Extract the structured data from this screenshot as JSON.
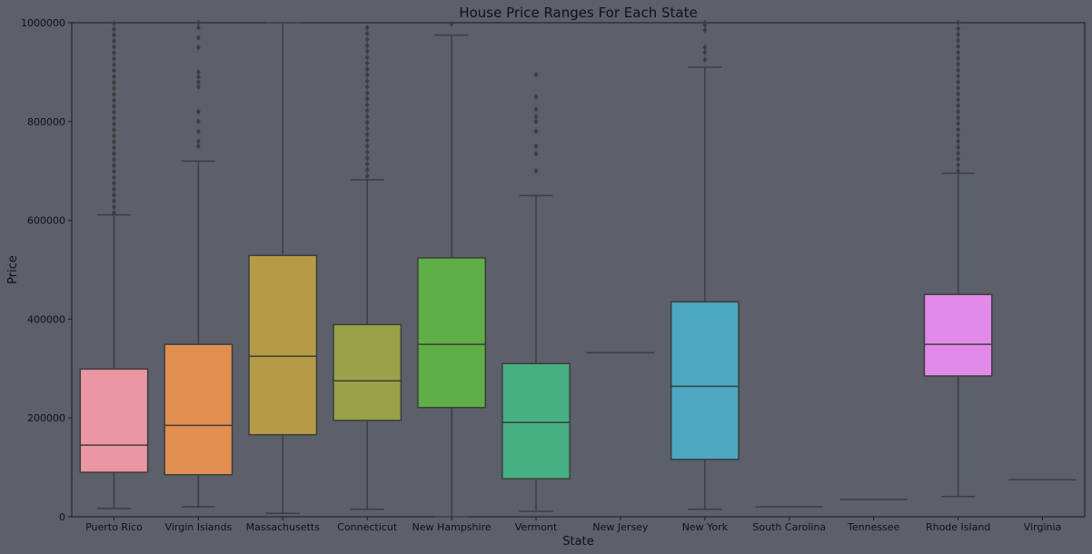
{
  "chart_data": {
    "type": "box",
    "title": "House Price Ranges For Each State",
    "xlabel": "State",
    "ylabel": "Price",
    "ylim": [
      0,
      1000000
    ],
    "yticks": [
      0,
      200000,
      400000,
      600000,
      800000,
      1000000
    ],
    "grid": false,
    "legend": "none",
    "categories": [
      "Puerto Rico",
      "Virgin Islands",
      "Massachusetts",
      "Connecticut",
      "New Hampshire",
      "Vermont",
      "New Jersey",
      "New York",
      "South Carolina",
      "Tennessee",
      "Rhode Island",
      "Virginia"
    ],
    "boxes": [
      {
        "category": "Puerto Rico",
        "color": "#ea96a3",
        "whislo": 17000,
        "q1": 90000,
        "med": 145000,
        "q3": 299000,
        "whishi": 611000,
        "outlier_range": [
          615000,
          1000000
        ]
      },
      {
        "category": "Virgin Islands",
        "color": "#e18e51",
        "whislo": 20000,
        "q1": 85000,
        "med": 185000,
        "q3": 349000,
        "whishi": 720000,
        "outliers": [
          750000,
          760000,
          780000,
          800000,
          820000,
          870000,
          880000,
          890000,
          900000,
          950000,
          970000,
          990000,
          1000000
        ]
      },
      {
        "category": "Massachusetts",
        "color": "#b59b47",
        "whislo": 7000,
        "q1": 166000,
        "med": 325000,
        "q3": 529000,
        "whishi": 1000000
      },
      {
        "category": "Connecticut",
        "color": "#99a246",
        "whislo": 15000,
        "q1": 195000,
        "med": 275000,
        "q3": 389000,
        "whishi": 682000,
        "outlier_range": [
          690000,
          1000000
        ]
      },
      {
        "category": "New Hampshire",
        "color": "#5fae47",
        "whislo": 0,
        "q1": 221000,
        "med": 349000,
        "q3": 524000,
        "whishi": 975000,
        "outliers": [
          998000
        ]
      },
      {
        "category": "Vermont",
        "color": "#47b083",
        "whislo": 11000,
        "q1": 77000,
        "med": 191000,
        "q3": 310000,
        "whishi": 650000,
        "outliers": [
          700000,
          735000,
          750000,
          780000,
          800000,
          810000,
          825000,
          850000,
          895000
        ]
      },
      {
        "category": "New Jersey",
        "color": "#4aad9a",
        "whislo": 332000,
        "q1": 332000,
        "med": 332000,
        "q3": 332000,
        "whishi": 332000
      },
      {
        "category": "New York",
        "color": "#4ba8c0",
        "whislo": 15000,
        "q1": 116000,
        "med": 264000,
        "q3": 435000,
        "whishi": 910000,
        "outliers": [
          925000,
          940000,
          950000,
          985000,
          995000,
          1000000
        ]
      },
      {
        "category": "South Carolina",
        "color": "#6fa0d9",
        "whislo": 20000,
        "q1": 20000,
        "med": 20000,
        "q3": 20000,
        "whishi": 20000
      },
      {
        "category": "Tennessee",
        "color": "#b49ae0",
        "whislo": 35000,
        "q1": 35000,
        "med": 35000,
        "q3": 35000,
        "whishi": 35000
      },
      {
        "category": "Rhode Island",
        "color": "#e28ae8",
        "whislo": 41000,
        "q1": 285000,
        "med": 349000,
        "q3": 450000,
        "whishi": 695000,
        "outlier_range": [
          700000,
          1000000
        ]
      },
      {
        "category": "Virginia",
        "color": "#e990c4",
        "whislo": 75000,
        "q1": 75000,
        "med": 75000,
        "q3": 75000,
        "whishi": 75000
      }
    ]
  }
}
